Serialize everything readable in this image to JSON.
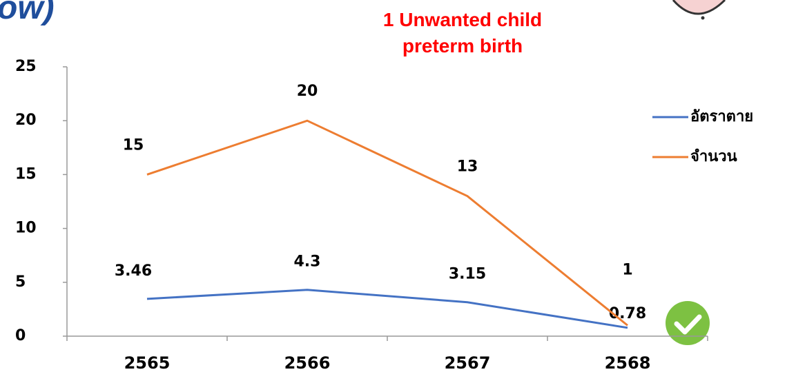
{
  "header_fragment": "ow)",
  "chart_data": {
    "type": "line",
    "title": "1 Unwanted child preterm birth",
    "categories": [
      "2565",
      "2566",
      "2567",
      "2568"
    ],
    "series": [
      {
        "name": "อัตราตาย",
        "color": "#4472c4",
        "values": [
          3.46,
          4.3,
          3.15,
          0.78
        ]
      },
      {
        "name": "จำนวน",
        "color": "#ed7d31",
        "values": [
          15,
          20,
          13,
          1
        ]
      }
    ],
    "ylim": [
      0,
      25
    ],
    "yticks": [
      0,
      5,
      10,
      15,
      20,
      25
    ],
    "grid": false,
    "legend": "right"
  }
}
